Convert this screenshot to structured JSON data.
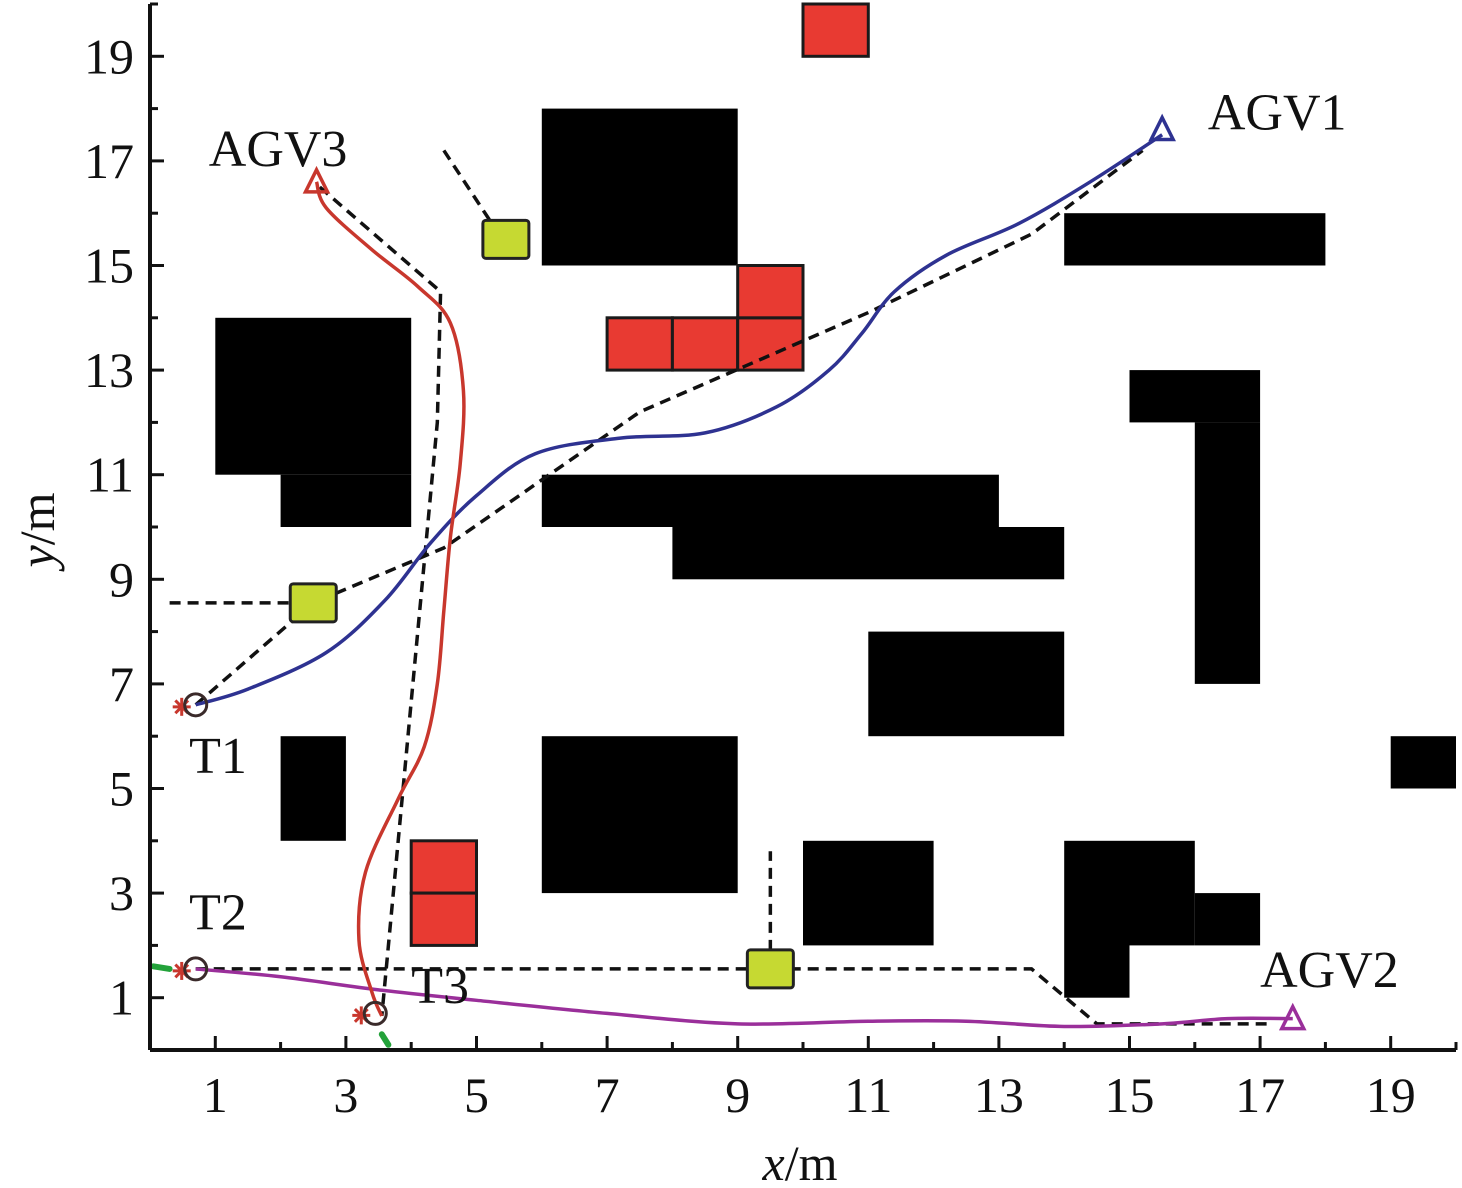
{
  "chart_data": {
    "type": "scatter",
    "title": "",
    "xlabel": {
      "var": "x",
      "unit": "/m"
    },
    "ylabel": {
      "var": "y",
      "unit": "/m"
    },
    "xlim": [
      0,
      20
    ],
    "ylim": [
      0,
      20
    ],
    "x_ticks": [
      "1",
      "3",
      "5",
      "7",
      "9",
      "11",
      "13",
      "15",
      "17",
      "19"
    ],
    "y_ticks": [
      "1",
      "3",
      "5",
      "7",
      "9",
      "11",
      "13",
      "15",
      "17",
      "19"
    ],
    "grid": false,
    "legend": "none",
    "colors": {
      "obstacle": "#000000",
      "red_block": "#e83a32",
      "green_box": "#c6d932",
      "agv1_path": "#2e3291",
      "agv2_path": "#9a2f9a",
      "agv3_path": "#c8372d",
      "planned_path": "#111111",
      "target_marker": "#c8372d",
      "green_tick": "#23a23a"
    },
    "obstacles": [
      {
        "x0": 6,
        "y0": 15,
        "x1": 9,
        "y1": 18
      },
      {
        "x0": 14,
        "y0": 15,
        "x1": 18,
        "y1": 16
      },
      {
        "x0": 1,
        "y0": 11,
        "x1": 4,
        "y1": 14
      },
      {
        "x0": 2,
        "y0": 10,
        "x1": 4,
        "y1": 11
      },
      {
        "x0": 15,
        "y0": 12,
        "x1": 17,
        "y1": 13
      },
      {
        "x0": 16,
        "y0": 7,
        "x1": 17,
        "y1": 12
      },
      {
        "x0": 6,
        "y0": 10,
        "x1": 13,
        "y1": 11
      },
      {
        "x0": 8,
        "y0": 9,
        "x1": 14,
        "y1": 10
      },
      {
        "x0": 11,
        "y0": 6,
        "x1": 14,
        "y1": 8
      },
      {
        "x0": 2,
        "y0": 4,
        "x1": 3,
        "y1": 6
      },
      {
        "x0": 6,
        "y0": 3,
        "x1": 9,
        "y1": 6
      },
      {
        "x0": 10,
        "y0": 2,
        "x1": 12,
        "y1": 4
      },
      {
        "x0": 14,
        "y0": 1,
        "x1": 15,
        "y1": 4
      },
      {
        "x0": 15,
        "y0": 2,
        "x1": 16,
        "y1": 4
      },
      {
        "x0": 16,
        "y0": 2,
        "x1": 17,
        "y1": 3
      },
      {
        "x0": 19,
        "y0": 5,
        "x1": 20,
        "y1": 6
      }
    ],
    "red_blocks": [
      {
        "x0": 10,
        "y0": 19,
        "x1": 11,
        "y1": 20
      },
      {
        "x0": 7,
        "y0": 13,
        "x1": 8,
        "y1": 14
      },
      {
        "x0": 8,
        "y0": 13,
        "x1": 9,
        "y1": 14
      },
      {
        "x0": 9,
        "y0": 13,
        "x1": 10,
        "y1": 14
      },
      {
        "x0": 9,
        "y0": 14,
        "x1": 10,
        "y1": 15
      },
      {
        "x0": 4,
        "y0": 3,
        "x1": 5,
        "y1": 4
      },
      {
        "x0": 4,
        "y0": 2,
        "x1": 5,
        "y1": 3
      }
    ],
    "green_boxes": [
      {
        "x": 5.45,
        "y": 15.5
      },
      {
        "x": 2.5,
        "y": 8.55
      },
      {
        "x": 9.5,
        "y": 1.55
      }
    ],
    "series": [
      {
        "name": "AGV1",
        "kind": "actual",
        "points": [
          [
            0.7,
            6.6
          ],
          [
            1.5,
            6.9
          ],
          [
            2.7,
            7.6
          ],
          [
            3.6,
            8.6
          ],
          [
            4.3,
            9.7
          ],
          [
            5.0,
            10.6
          ],
          [
            5.9,
            11.4
          ],
          [
            7.2,
            11.7
          ],
          [
            8.5,
            11.8
          ],
          [
            9.6,
            12.3
          ],
          [
            10.4,
            13.0
          ],
          [
            10.9,
            13.7
          ],
          [
            11.4,
            14.5
          ],
          [
            12.2,
            15.2
          ],
          [
            13.3,
            15.8
          ],
          [
            14.4,
            16.6
          ],
          [
            15.5,
            17.5
          ]
        ]
      },
      {
        "name": "AGV2",
        "kind": "actual",
        "points": [
          [
            0.7,
            1.55
          ],
          [
            2.0,
            1.4
          ],
          [
            3.5,
            1.15
          ],
          [
            5.0,
            0.95
          ],
          [
            7.0,
            0.7
          ],
          [
            9.0,
            0.5
          ],
          [
            11.0,
            0.55
          ],
          [
            12.5,
            0.55
          ],
          [
            14.0,
            0.45
          ],
          [
            15.5,
            0.5
          ],
          [
            16.5,
            0.6
          ],
          [
            17.5,
            0.6
          ]
        ]
      },
      {
        "name": "AGV3",
        "kind": "actual",
        "points": [
          [
            2.55,
            16.6
          ],
          [
            2.7,
            16.1
          ],
          [
            3.4,
            15.3
          ],
          [
            4.1,
            14.6
          ],
          [
            4.6,
            13.9
          ],
          [
            4.8,
            12.6
          ],
          [
            4.75,
            11.2
          ],
          [
            4.6,
            9.8
          ],
          [
            4.5,
            8.4
          ],
          [
            4.4,
            7.0
          ],
          [
            4.2,
            5.8
          ],
          [
            3.8,
            4.8
          ],
          [
            3.3,
            3.4
          ],
          [
            3.2,
            2.1
          ],
          [
            3.4,
            1.1
          ],
          [
            3.55,
            0.65
          ]
        ]
      },
      {
        "name": "AGV1",
        "kind": "planned",
        "points": [
          [
            0.7,
            6.6
          ],
          [
            2.5,
            8.55
          ],
          [
            4.5,
            9.6
          ],
          [
            7.5,
            12.2
          ],
          [
            11.0,
            14.1
          ],
          [
            13.5,
            15.6
          ],
          [
            15.2,
            17.2
          ]
        ]
      },
      {
        "name": "AGV2",
        "kind": "planned",
        "points": [
          [
            0.7,
            1.55
          ],
          [
            9.5,
            1.55
          ],
          [
            13.5,
            1.55
          ],
          [
            14.5,
            0.5
          ],
          [
            17.1,
            0.5
          ]
        ]
      },
      {
        "name": "AGV3",
        "kind": "planned",
        "points": [
          [
            2.6,
            16.5
          ],
          [
            4.45,
            14.5
          ],
          [
            4.4,
            12.0
          ],
          [
            3.55,
            0.65
          ]
        ]
      },
      {
        "name": "",
        "kind": "planned",
        "points": [
          [
            0.3,
            8.55
          ],
          [
            2.5,
            8.55
          ]
        ]
      },
      {
        "name": "",
        "kind": "planned",
        "points": [
          [
            5.5,
            15.3
          ],
          [
            4.5,
            17.2
          ]
        ]
      },
      {
        "name": "",
        "kind": "planned",
        "points": [
          [
            9.5,
            1.55
          ],
          [
            9.5,
            3.8
          ]
        ]
      }
    ],
    "start_markers": [
      {
        "name": "AGV1",
        "x": 15.5,
        "y": 17.6,
        "color": "#2e3291"
      },
      {
        "name": "AGV2",
        "x": 17.5,
        "y": 0.6,
        "color": "#9a2f9a"
      },
      {
        "name": "AGV3",
        "x": 2.55,
        "y": 16.6,
        "color": "#c8372d"
      }
    ],
    "targets": [
      {
        "name": "T1",
        "x": 0.7,
        "y": 6.6
      },
      {
        "name": "T2",
        "x": 0.7,
        "y": 1.55
      },
      {
        "name": "T3",
        "x": 3.45,
        "y": 0.7
      }
    ],
    "annotations": [
      {
        "text": "AGV1",
        "x": 16.2,
        "y": 17.6
      },
      {
        "text": "AGV2",
        "x": 17.0,
        "y": 1.2
      },
      {
        "text": "AGV3",
        "x": 0.9,
        "y": 16.9
      },
      {
        "text": "T1",
        "x": 0.6,
        "y": 5.3
      },
      {
        "text": "T2",
        "x": 0.6,
        "y": 2.3
      },
      {
        "text": "T3",
        "x": 4.0,
        "y": 0.9
      }
    ]
  }
}
